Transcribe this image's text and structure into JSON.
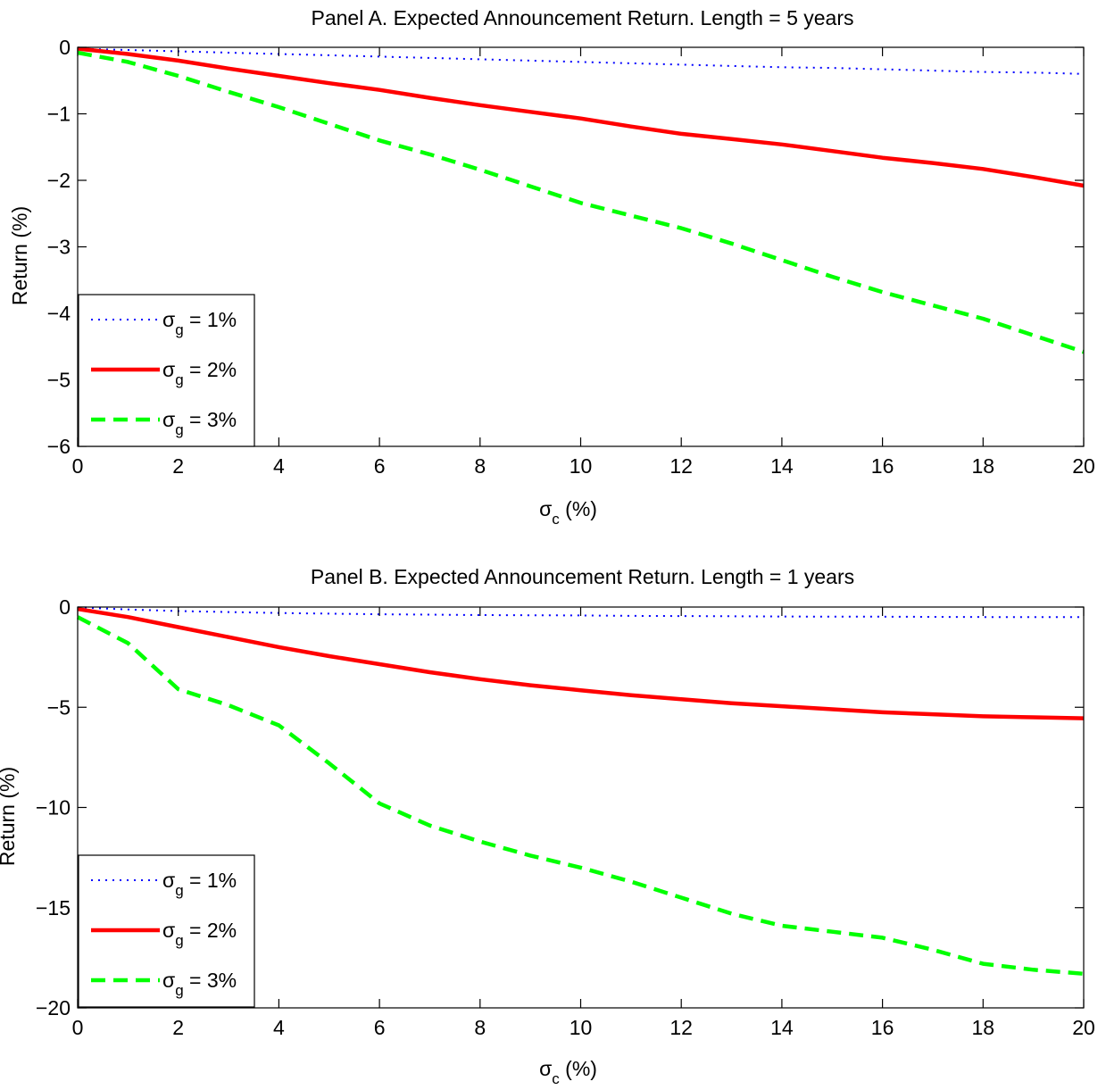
{
  "chart_data": [
    {
      "type": "line",
      "title": "Panel A. Expected Announcement Return. Length = 5 years",
      "xlabel": {
        "main": "σ",
        "sub": "c",
        "rest": " (%)"
      },
      "ylabel": "Return (%)",
      "xlim": [
        0,
        20
      ],
      "ylim": [
        -6,
        0
      ],
      "xticks": [
        0,
        2,
        4,
        6,
        8,
        10,
        12,
        14,
        16,
        18,
        20
      ],
      "yticks": [
        0,
        -1,
        -2,
        -3,
        -4,
        -5,
        -6
      ],
      "grid": false,
      "legend_position": "bottom-left",
      "x": [
        0,
        1,
        2,
        3,
        4,
        5,
        6,
        7,
        8,
        9,
        10,
        11,
        12,
        13,
        14,
        15,
        16,
        17,
        18,
        19,
        20
      ],
      "series": [
        {
          "label": {
            "main": "σ",
            "sub": "g",
            "rest": " = 1%"
          },
          "color": "#0000ff",
          "style": "dotted",
          "values": [
            -0.02,
            -0.04,
            -0.06,
            -0.08,
            -0.1,
            -0.12,
            -0.14,
            -0.16,
            -0.18,
            -0.2,
            -0.22,
            -0.24,
            -0.26,
            -0.28,
            -0.3,
            -0.31,
            -0.33,
            -0.35,
            -0.37,
            -0.38,
            -0.4
          ]
        },
        {
          "label": {
            "main": "σ",
            "sub": "g",
            "rest": " = 2%"
          },
          "color": "#ff0000",
          "style": "solid",
          "values": [
            -0.02,
            -0.1,
            -0.2,
            -0.32,
            -0.43,
            -0.54,
            -0.64,
            -0.76,
            -0.87,
            -0.97,
            -1.07,
            -1.19,
            -1.3,
            -1.38,
            -1.46,
            -1.56,
            -1.66,
            -1.74,
            -1.83,
            -1.95,
            -2.08
          ]
        },
        {
          "label": {
            "main": "σ",
            "sub": "g",
            "rest": " = 3%"
          },
          "color": "#00ff00",
          "style": "dashed",
          "values": [
            -0.08,
            -0.22,
            -0.43,
            -0.67,
            -0.9,
            -1.15,
            -1.4,
            -1.61,
            -1.84,
            -2.09,
            -2.34,
            -2.53,
            -2.72,
            -2.95,
            -3.2,
            -3.45,
            -3.68,
            -3.88,
            -4.08,
            -4.33,
            -4.58
          ]
        }
      ]
    },
    {
      "type": "line",
      "title": "Panel B. Expected Announcement Return. Length = 1 years",
      "xlabel": {
        "main": "σ",
        "sub": "c",
        "rest": " (%)"
      },
      "ylabel": "Return (%)",
      "xlim": [
        0,
        20
      ],
      "ylim": [
        -20,
        0
      ],
      "xticks": [
        0,
        2,
        4,
        6,
        8,
        10,
        12,
        14,
        16,
        18,
        20
      ],
      "yticks": [
        0,
        -5,
        -10,
        -15,
        -20
      ],
      "grid": false,
      "legend_position": "bottom-left",
      "x": [
        0,
        1,
        2,
        3,
        4,
        5,
        6,
        7,
        8,
        9,
        10,
        11,
        12,
        13,
        14,
        15,
        16,
        17,
        18,
        19,
        20
      ],
      "series": [
        {
          "label": {
            "main": "σ",
            "sub": "g",
            "rest": " = 1%"
          },
          "color": "#0000ff",
          "style": "dotted",
          "values": [
            -0.02,
            -0.12,
            -0.2,
            -0.25,
            -0.3,
            -0.33,
            -0.36,
            -0.38,
            -0.4,
            -0.41,
            -0.42,
            -0.44,
            -0.45,
            -0.46,
            -0.47,
            -0.48,
            -0.48,
            -0.49,
            -0.5,
            -0.5,
            -0.5
          ]
        },
        {
          "label": {
            "main": "σ",
            "sub": "g",
            "rest": " = 2%"
          },
          "color": "#ff0000",
          "style": "solid",
          "values": [
            -0.1,
            -0.5,
            -1.0,
            -1.5,
            -2.0,
            -2.45,
            -2.85,
            -3.25,
            -3.6,
            -3.9,
            -4.15,
            -4.4,
            -4.6,
            -4.8,
            -4.95,
            -5.1,
            -5.25,
            -5.35,
            -5.45,
            -5.5,
            -5.55
          ]
        },
        {
          "label": {
            "main": "σ",
            "sub": "g",
            "rest": " = 3%"
          },
          "color": "#00ff00",
          "style": "dashed",
          "values": [
            -0.5,
            -1.8,
            -4.1,
            -4.9,
            -5.9,
            -7.8,
            -9.8,
            -10.9,
            -11.7,
            -12.4,
            -13.0,
            -13.7,
            -14.5,
            -15.3,
            -15.9,
            -16.2,
            -16.5,
            -17.1,
            -17.8,
            -18.1,
            -18.3
          ]
        }
      ]
    }
  ]
}
